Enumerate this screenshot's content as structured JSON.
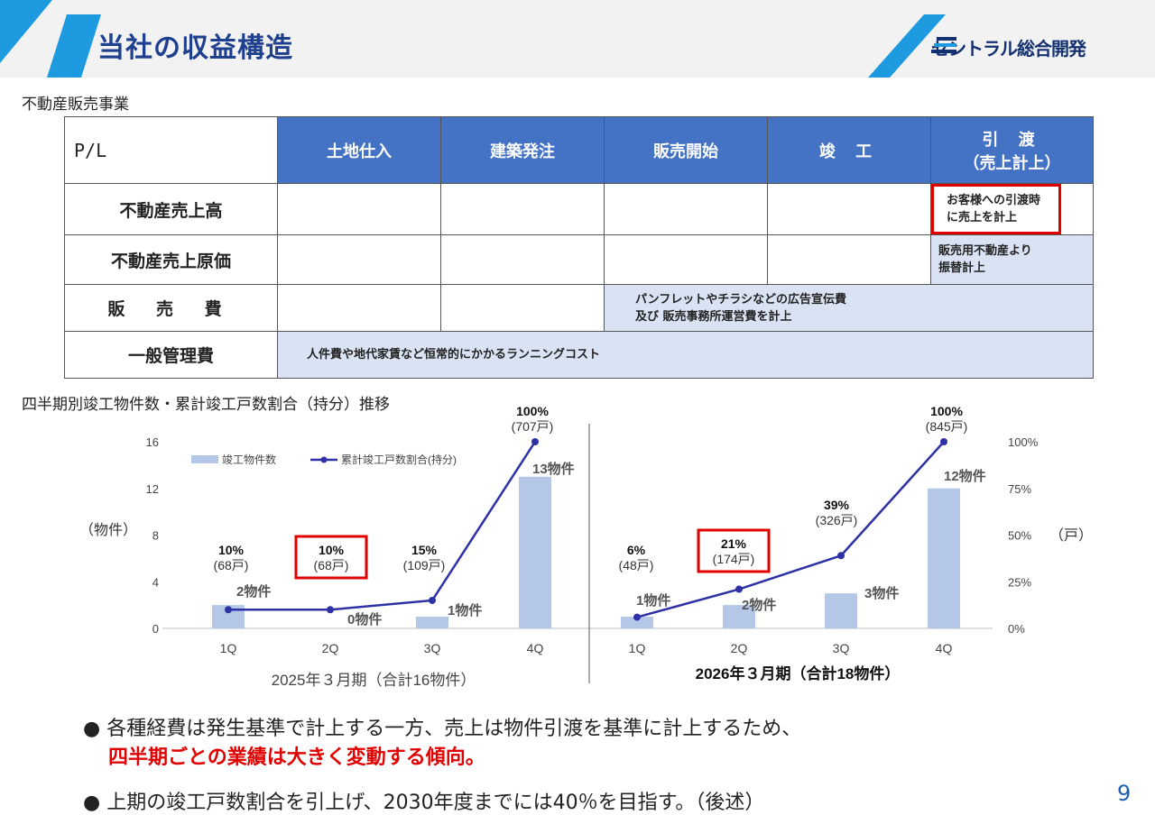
{
  "header": {
    "title": "当社の収益構造",
    "logo_text": "セントラル総合開発"
  },
  "section1_label": "不動産販売事業",
  "table": {
    "corner": "P/L",
    "columns": [
      "土地仕入",
      "建築発注",
      "販売開始",
      "竣 工",
      "引 渡",
      "（売上計上）"
    ],
    "rows": [
      {
        "label": "不動産売上高",
        "note": [
          "お客様への引渡時",
          "に売上を計上"
        ]
      },
      {
        "label": "不動産売上原価",
        "note": [
          "販売用不動産より",
          "振替計上"
        ]
      },
      {
        "label": "販 売 費",
        "note": [
          "パンフレットやチラシなどの広告宣伝費",
          "及び 販売事務所運営費を計上"
        ]
      },
      {
        "label": "一般管理費",
        "note": [
          "人件費や地代家賃など恒常的にかかるランニングコスト"
        ]
      }
    ]
  },
  "section2_label": "四半期別竣工物件数・累計竣工戸数割合（持分）推移",
  "chart_data": {
    "type": "bar",
    "categories": [
      "1Q",
      "2Q",
      "3Q",
      "4Q",
      "1Q",
      "2Q",
      "3Q",
      "4Q"
    ],
    "series": [
      {
        "name": "竣工物件数",
        "type": "bar",
        "axis": "left",
        "values": [
          2,
          0,
          1,
          13,
          1,
          2,
          3,
          12
        ],
        "labels": [
          "2物件",
          "0物件",
          "1物件",
          "13物件",
          "1物件",
          "2物件",
          "3物件",
          "12物件"
        ]
      },
      {
        "name": "累計竣工戸数割合(持分)",
        "type": "line",
        "axis": "right",
        "values": [
          10,
          10,
          15,
          100,
          6,
          21,
          39,
          100
        ],
        "labels": [
          "10%",
          "10%",
          "15%",
          "100%",
          "6%",
          "21%",
          "39%",
          "100%"
        ],
        "sublabels": [
          "(68戸)",
          "(68戸)",
          "(109戸)",
          "(707戸)",
          "(48戸)",
          "(174戸)",
          "(326戸)",
          "(845戸)"
        ]
      }
    ],
    "left_ticks": [
      "16",
      "12",
      "8",
      "4",
      "0"
    ],
    "right_ticks": [
      "100%",
      "75%",
      "50%",
      "25%",
      "0%"
    ],
    "ylim_left": [
      0,
      16
    ],
    "ylim_right": [
      0,
      100
    ],
    "ylabel_left": "（物件）",
    "ylabel_right": "（戸）",
    "groups": [
      "2025年３月期（合計16物件）",
      "2026年３月期（合計18物件）"
    ],
    "highlighted_indices": [
      1,
      5
    ],
    "legend_position": "top-left",
    "colors": {
      "bar": "#b4c7e7",
      "line": "#2e31a6",
      "highlight": "#e00000"
    }
  },
  "bullets": {
    "b1_line1": "● 各種経費は発生基準で計上する一方、売上は物件引渡を基準に計上するため、",
    "b1_line2": "四半期ごとの業績は大きく変動する傾向。",
    "b2": "● 上期の竣工戸数割合を引上げ、2030年度までには40％を目指す。（後述）"
  },
  "page_number": "9"
}
